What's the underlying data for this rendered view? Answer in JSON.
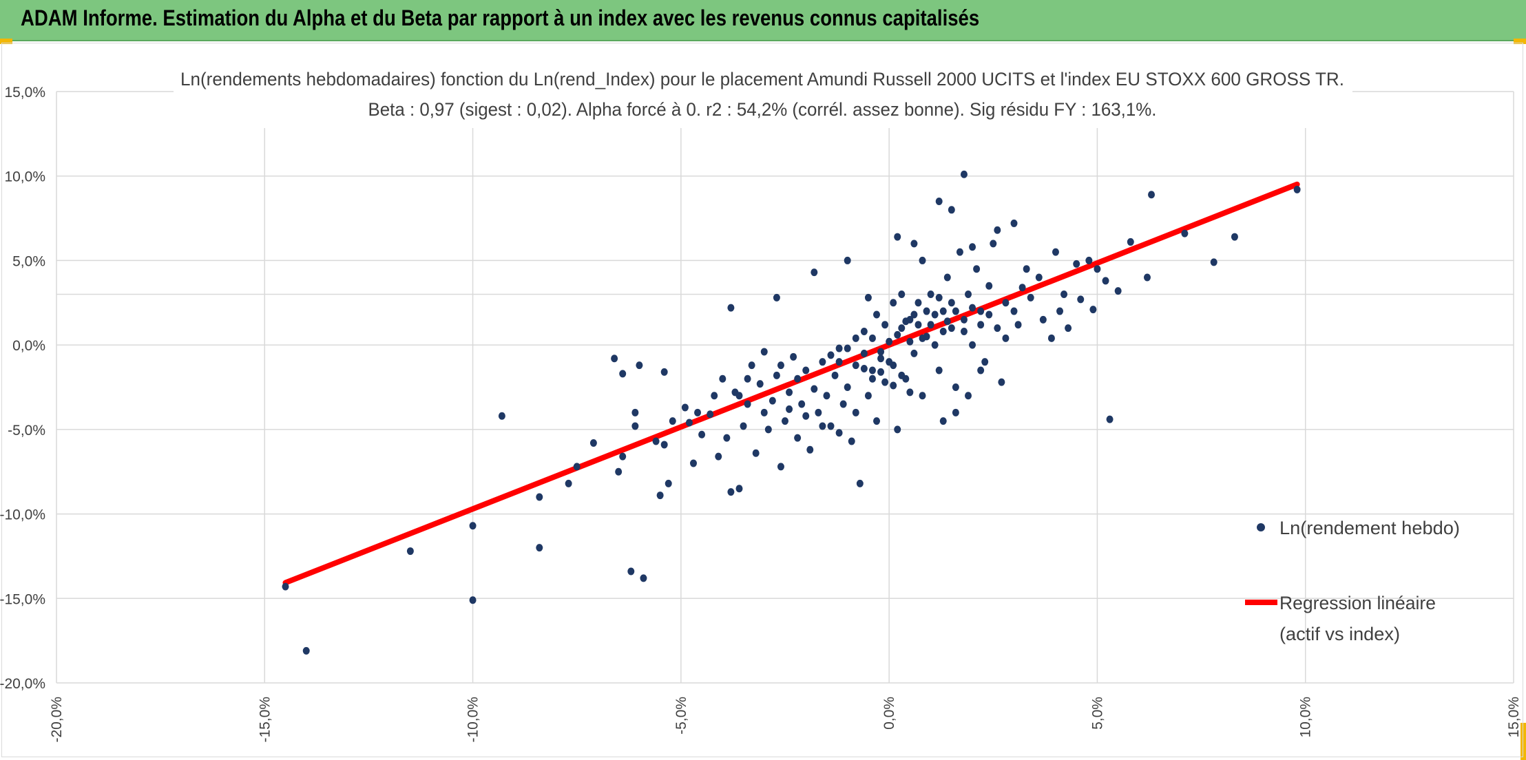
{
  "banner": {
    "title": "ADAM Informe. Estimation du Alpha et du Beta par rapport à un index avec les revenus connus capitalisés",
    "background": "#7dc67f"
  },
  "chart_data": {
    "type": "scatter",
    "title": "Ln(rendements hebdomadaires) fonction du Ln(rend_Index) pour le placement Amundi Russell 2000 UCITS et l'index EU STOXX 600 GROSS TR.",
    "subtitle": "Beta : 0,97 (sigest : 0,02). Alpha forcé à 0. r2 : 54,2% (corrél. assez bonne). Sig résidu FY : 163,1%.",
    "xlim": [
      -0.2,
      0.15
    ],
    "ylim": [
      -0.2,
      0.15
    ],
    "x_ticks": [
      -0.2,
      -0.15,
      -0.1,
      -0.05,
      0.0,
      0.05,
      0.1,
      0.15
    ],
    "x_tick_labels": [
      "-20,0%",
      "-15,0%",
      "-10,0%",
      "-5,0%",
      "0,0%",
      "5,0%",
      "10,0%",
      "15,0%"
    ],
    "y_ticks": [
      0.15,
      0.1,
      0.05,
      0.0,
      -0.05,
      -0.1,
      -0.15,
      -0.2
    ],
    "y_tick_labels": [
      "15,0%",
      "10,0%",
      "5,0%",
      "0,0%",
      "-5,0%",
      "-10,0%",
      "-15,0%",
      "-20,0%"
    ],
    "grid": true,
    "legend_position": "right",
    "series": [
      {
        "name": "Ln(rendement hebdo)",
        "kind": "scatter",
        "color": "#1f3864",
        "points": [
          [
            -0.145,
            -0.143
          ],
          [
            -0.14,
            -0.181
          ],
          [
            -0.115,
            -0.122
          ],
          [
            -0.1,
            -0.107
          ],
          [
            -0.1,
            -0.151
          ],
          [
            -0.093,
            -0.042
          ],
          [
            -0.084,
            -0.09
          ],
          [
            -0.084,
            -0.12
          ],
          [
            -0.077,
            -0.082
          ],
          [
            -0.075,
            -0.072
          ],
          [
            -0.071,
            -0.058
          ],
          [
            -0.065,
            -0.075
          ],
          [
            -0.064,
            -0.066
          ],
          [
            -0.066,
            -0.008
          ],
          [
            -0.064,
            -0.017
          ],
          [
            -0.062,
            -0.134
          ],
          [
            -0.059,
            -0.138
          ],
          [
            -0.061,
            -0.04
          ],
          [
            -0.061,
            -0.048
          ],
          [
            -0.06,
            -0.012
          ],
          [
            -0.056,
            -0.057
          ],
          [
            -0.054,
            -0.059
          ],
          [
            -0.055,
            -0.089
          ],
          [
            -0.053,
            -0.082
          ],
          [
            -0.054,
            -0.016
          ],
          [
            -0.052,
            -0.045
          ],
          [
            -0.049,
            -0.037
          ],
          [
            -0.048,
            -0.046
          ],
          [
            -0.047,
            -0.07
          ],
          [
            -0.046,
            -0.04
          ],
          [
            -0.045,
            -0.053
          ],
          [
            -0.043,
            -0.041
          ],
          [
            -0.042,
            -0.03
          ],
          [
            -0.041,
            -0.066
          ],
          [
            -0.04,
            -0.02
          ],
          [
            -0.039,
            -0.055
          ],
          [
            -0.038,
            -0.087
          ],
          [
            -0.037,
            -0.028
          ],
          [
            -0.036,
            -0.085
          ],
          [
            -0.035,
            -0.048
          ],
          [
            -0.034,
            -0.035
          ],
          [
            -0.033,
            -0.012
          ],
          [
            -0.032,
            -0.064
          ],
          [
            -0.031,
            -0.023
          ],
          [
            -0.03,
            -0.04
          ],
          [
            -0.029,
            -0.05
          ],
          [
            -0.028,
            -0.033
          ],
          [
            -0.027,
            -0.018
          ],
          [
            -0.026,
            -0.072
          ],
          [
            -0.025,
            -0.045
          ],
          [
            -0.024,
            -0.028
          ],
          [
            -0.023,
            -0.007
          ],
          [
            -0.022,
            -0.055
          ],
          [
            -0.021,
            -0.035
          ],
          [
            -0.02,
            -0.015
          ],
          [
            -0.019,
            -0.062
          ],
          [
            -0.018,
            -0.026
          ],
          [
            -0.017,
            -0.04
          ],
          [
            -0.016,
            -0.01
          ],
          [
            -0.015,
            -0.03
          ],
          [
            -0.014,
            -0.048
          ],
          [
            -0.013,
            -0.018
          ],
          [
            -0.012,
            -0.002
          ],
          [
            -0.011,
            -0.035
          ],
          [
            -0.01,
            -0.025
          ],
          [
            -0.009,
            -0.057
          ],
          [
            -0.008,
            -0.012
          ],
          [
            -0.007,
            -0.082
          ],
          [
            -0.006,
            -0.005
          ],
          [
            -0.005,
            -0.03
          ],
          [
            -0.004,
            -0.015
          ],
          [
            -0.003,
            -0.045
          ],
          [
            -0.002,
            -0.008
          ],
          [
            -0.001,
            -0.022
          ],
          [
            0.0,
            0.002
          ],
          [
            0.001,
            -0.012
          ],
          [
            0.002,
            -0.05
          ],
          [
            0.003,
            0.01
          ],
          [
            0.004,
            -0.02
          ],
          [
            0.005,
            0.015
          ],
          [
            0.006,
            -0.005
          ],
          [
            0.007,
            0.025
          ],
          [
            0.008,
            -0.03
          ],
          [
            0.009,
            0.005
          ],
          [
            0.01,
            0.03
          ],
          [
            0.011,
            0.0
          ],
          [
            0.012,
            -0.015
          ],
          [
            0.013,
            0.02
          ],
          [
            0.014,
            0.04
          ],
          [
            0.015,
            0.01
          ],
          [
            0.016,
            -0.025
          ],
          [
            0.017,
            0.055
          ],
          [
            0.018,
            0.015
          ],
          [
            0.019,
            0.03
          ],
          [
            0.02,
            0.0
          ],
          [
            0.021,
            0.045
          ],
          [
            0.022,
            0.02
          ],
          [
            0.023,
            -0.01
          ],
          [
            0.024,
            0.035
          ],
          [
            0.025,
            0.06
          ],
          [
            -0.018,
            0.043
          ],
          [
            -0.038,
            0.022
          ],
          [
            -0.027,
            0.028
          ],
          [
            -0.01,
            0.05
          ],
          [
            -0.005,
            0.028
          ],
          [
            0.002,
            0.064
          ],
          [
            0.006,
            0.06
          ],
          [
            0.008,
            0.05
          ],
          [
            0.012,
            0.085
          ],
          [
            0.015,
            0.08
          ],
          [
            0.018,
            0.101
          ],
          [
            0.02,
            0.058
          ],
          [
            0.026,
            0.068
          ],
          [
            0.03,
            0.072
          ],
          [
            0.033,
            0.045
          ],
          [
            0.036,
            0.04
          ],
          [
            0.04,
            0.055
          ],
          [
            0.042,
            0.03
          ],
          [
            0.045,
            0.048
          ],
          [
            0.048,
            0.05
          ],
          [
            0.052,
            0.038
          ],
          [
            0.055,
            0.032
          ],
          [
            0.058,
            0.061
          ],
          [
            0.062,
            0.04
          ],
          [
            0.063,
            0.089
          ],
          [
            0.071,
            0.066
          ],
          [
            0.078,
            0.049
          ],
          [
            0.083,
            0.064
          ],
          [
            0.098,
            0.092
          ],
          [
            0.053,
            -0.044
          ],
          [
            0.028,
            0.025
          ],
          [
            0.031,
            0.012
          ],
          [
            0.034,
            0.028
          ],
          [
            0.037,
            0.015
          ],
          [
            0.039,
            0.004
          ],
          [
            0.041,
            0.02
          ],
          [
            0.043,
            0.01
          ],
          [
            0.046,
            0.027
          ],
          [
            0.049,
            0.021
          ],
          [
            0.05,
            0.045
          ],
          [
            0.027,
            -0.022
          ],
          [
            0.022,
            -0.015
          ],
          [
            0.019,
            -0.03
          ],
          [
            0.016,
            -0.04
          ],
          [
            0.013,
            -0.045
          ],
          [
            -0.008,
            -0.04
          ],
          [
            -0.012,
            -0.052
          ],
          [
            -0.016,
            -0.048
          ],
          [
            -0.02,
            -0.042
          ],
          [
            -0.024,
            -0.038
          ],
          [
            -0.003,
            0.018
          ],
          [
            -0.001,
            0.012
          ],
          [
            0.001,
            0.025
          ],
          [
            0.003,
            0.03
          ],
          [
            0.005,
            0.002
          ],
          [
            0.007,
            0.012
          ],
          [
            0.009,
            0.02
          ],
          [
            0.011,
            0.018
          ],
          [
            0.013,
            0.008
          ],
          [
            0.015,
            0.025
          ],
          [
            -0.006,
            0.008
          ],
          [
            -0.004,
            0.004
          ],
          [
            -0.002,
            -0.004
          ],
          [
            0.0,
            -0.01
          ],
          [
            0.002,
            0.006
          ],
          [
            0.004,
            0.014
          ],
          [
            0.006,
            0.018
          ],
          [
            0.008,
            0.004
          ],
          [
            0.01,
            0.012
          ],
          [
            0.012,
            0.028
          ],
          [
            0.014,
            0.014
          ],
          [
            0.016,
            0.02
          ],
          [
            0.018,
            0.008
          ],
          [
            0.02,
            0.022
          ],
          [
            0.022,
            0.012
          ],
          [
            -0.014,
            -0.006
          ],
          [
            -0.012,
            -0.01
          ],
          [
            -0.01,
            -0.002
          ],
          [
            -0.008,
            0.004
          ],
          [
            -0.006,
            -0.014
          ],
          [
            -0.004,
            -0.02
          ],
          [
            -0.002,
            -0.016
          ],
          [
            0.001,
            -0.024
          ],
          [
            0.003,
            -0.018
          ],
          [
            0.005,
            -0.028
          ],
          [
            0.024,
            0.018
          ],
          [
            0.026,
            0.01
          ],
          [
            0.028,
            0.004
          ],
          [
            0.03,
            0.02
          ],
          [
            0.032,
            0.034
          ],
          [
            -0.022,
            -0.02
          ],
          [
            -0.026,
            -0.012
          ],
          [
            -0.03,
            -0.004
          ],
          [
            -0.034,
            -0.02
          ],
          [
            -0.036,
            -0.03
          ]
        ]
      },
      {
        "name": "Regression linéaire (actif vs index)",
        "legend_lines": [
          "Regression linéaire",
          "(actif vs index)"
        ],
        "kind": "line",
        "color": "#ff0000",
        "x": [
          -0.145,
          0.098
        ],
        "y": [
          -0.1407,
          0.0951
        ]
      }
    ]
  }
}
